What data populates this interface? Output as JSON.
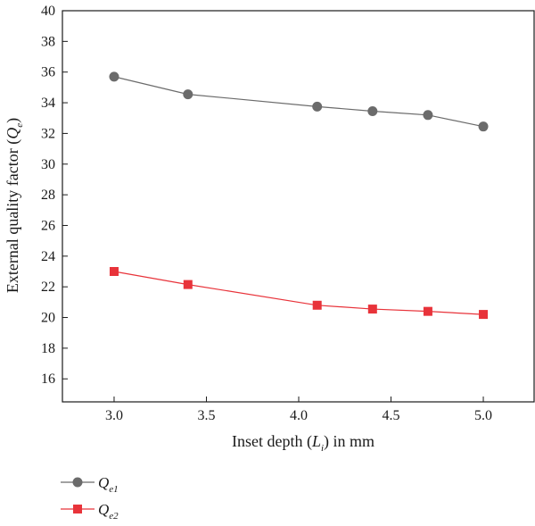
{
  "chart_data": {
    "type": "line",
    "xlabel": {
      "prefix": "Inset depth (",
      "var": "L",
      "sub": "i",
      "suffix": ") in mm"
    },
    "ylabel": {
      "prefix": "External quality factor (",
      "var": "Q",
      "sub": "e",
      "suffix": ")"
    },
    "xlim": [
      2.72,
      5.28
    ],
    "ylim": [
      14.5,
      40
    ],
    "x_ticks": [
      3.0,
      3.5,
      4.0,
      4.5,
      5.0
    ],
    "x_tick_labels": [
      "3.0",
      "3.5",
      "4.0",
      "4.5",
      "5.0"
    ],
    "y_ticks": [
      16,
      18,
      20,
      22,
      24,
      26,
      28,
      30,
      32,
      34,
      36,
      38,
      40
    ],
    "y_tick_labels": [
      "16",
      "18",
      "20",
      "22",
      "24",
      "26",
      "28",
      "30",
      "32",
      "34",
      "36",
      "38",
      "40"
    ],
    "grid": false,
    "legend_position": "bottom-left, below plot",
    "x": [
      3.0,
      3.4,
      4.1,
      4.4,
      4.7,
      5.0
    ],
    "series": [
      {
        "legend_var": "Q",
        "legend_sub": "e1",
        "color": "#6b6b6b",
        "marker": "circle",
        "values": [
          35.7,
          34.55,
          33.75,
          33.45,
          33.2,
          32.45
        ]
      },
      {
        "legend_var": "Q",
        "legend_sub": "e2",
        "color": "#e8333a",
        "marker": "square",
        "values": [
          23.0,
          22.15,
          20.8,
          20.55,
          20.4,
          20.2
        ]
      }
    ]
  }
}
